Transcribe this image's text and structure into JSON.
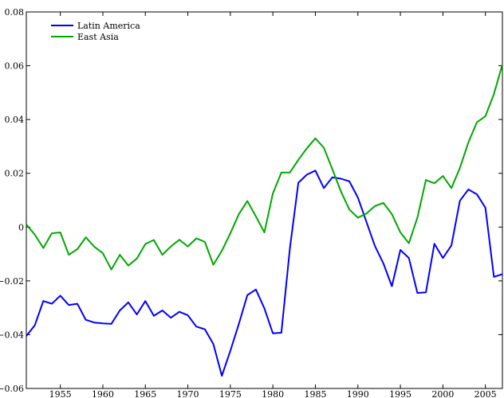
{
  "chart_data": {
    "type": "line",
    "title": "",
    "xlabel": "",
    "ylabel": "",
    "xlim": [
      1951,
      2007
    ],
    "ylim": [
      -0.06,
      0.08
    ],
    "grid": false,
    "legend_position": "top-left",
    "xticks": [
      1955,
      1960,
      1965,
      1970,
      1975,
      1980,
      1985,
      1990,
      1995,
      2000,
      2005
    ],
    "xtick_labels": [
      "1955",
      "1960",
      "1965",
      "1970",
      "1975",
      "1980",
      "1985",
      "1990",
      "1995",
      "2000",
      "2005"
    ],
    "yticks": [
      -0.06,
      -0.04,
      -0.02,
      0,
      0.02,
      0.04,
      0.06,
      0.08
    ],
    "ytick_labels": [
      "−0.06",
      "−0.04",
      "−0.02",
      "0",
      "0.02",
      "0.04",
      "0.06",
      "0.08"
    ],
    "x": [
      1951,
      1952,
      1953,
      1954,
      1955,
      1956,
      1957,
      1958,
      1959,
      1960,
      1961,
      1962,
      1963,
      1964,
      1965,
      1966,
      1967,
      1968,
      1969,
      1970,
      1971,
      1972,
      1973,
      1974,
      1975,
      1976,
      1977,
      1978,
      1979,
      1980,
      1981,
      1982,
      1983,
      1984,
      1985,
      1986,
      1987,
      1988,
      1989,
      1990,
      1991,
      1992,
      1993,
      1994,
      1995,
      1996,
      1997,
      1998,
      1999,
      2000,
      2001,
      2002,
      2003,
      2004,
      2005,
      2006,
      2007
    ],
    "series": [
      {
        "name": "Latin America",
        "color": "#0000ff",
        "values": [
          -0.0405,
          -0.0365,
          -0.0275,
          -0.0285,
          -0.0255,
          -0.029,
          -0.0285,
          -0.0345,
          -0.0355,
          -0.0358,
          -0.036,
          -0.031,
          -0.028,
          -0.0325,
          -0.0275,
          -0.033,
          -0.031,
          -0.0337,
          -0.0315,
          -0.0328,
          -0.037,
          -0.038,
          -0.0435,
          -0.0553,
          -0.046,
          -0.036,
          -0.0253,
          -0.0232,
          -0.0302,
          -0.0395,
          -0.0393,
          -0.008,
          0.0165,
          0.0195,
          0.021,
          0.0145,
          0.0185,
          0.018,
          0.017,
          0.011,
          0.002,
          -0.007,
          -0.0135,
          -0.022,
          -0.0085,
          -0.0115,
          -0.0245,
          -0.0243,
          -0.0062,
          -0.0115,
          -0.0068,
          0.0098,
          0.014,
          0.0122,
          0.0072,
          -0.0185,
          -0.0175
        ]
      },
      {
        "name": "East Asia",
        "color": "#00a800",
        "values": [
          0.001,
          -0.0028,
          -0.0078,
          -0.0023,
          -0.002,
          -0.0103,
          -0.0082,
          -0.0038,
          -0.0073,
          -0.0097,
          -0.0158,
          -0.0103,
          -0.0143,
          -0.0117,
          -0.0063,
          -0.0048,
          -0.0103,
          -0.0072,
          -0.0047,
          -0.0072,
          -0.0042,
          -0.0055,
          -0.014,
          -0.0088,
          -0.0023,
          0.0048,
          0.0097,
          0.004,
          -0.002,
          0.0125,
          0.0203,
          0.0203,
          0.025,
          0.0293,
          0.033,
          0.0295,
          0.0215,
          0.0133,
          0.0065,
          0.0035,
          0.005,
          0.0078,
          0.009,
          0.0048,
          -0.002,
          -0.006,
          0.0035,
          0.0175,
          0.0163,
          0.019,
          0.0145,
          0.022,
          0.0315,
          0.039,
          0.0412,
          0.0495,
          0.0605
        ]
      }
    ]
  }
}
